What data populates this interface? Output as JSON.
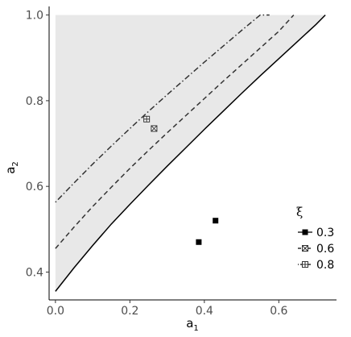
{
  "chart_data": {
    "type": "line",
    "xlabel": "a",
    "xlabel_sub": "1",
    "ylabel": "a",
    "ylabel_sub": "2",
    "xlim": [
      -0.017,
      0.755
    ],
    "ylim": [
      0.335,
      1.02
    ],
    "xticks": [
      0.0,
      0.2,
      0.4,
      0.6
    ],
    "xtick_labels": [
      "0.0",
      "0.2",
      "0.4",
      "0.6"
    ],
    "yticks": [
      0.4,
      0.6,
      0.8,
      1.0
    ],
    "ytick_labels": [
      "0.4",
      "0.6",
      "0.8",
      "1.0"
    ],
    "grid": false,
    "shaded_region": {
      "fill": "#e8e8e8",
      "x_range": [
        0.0,
        0.72
      ],
      "y_top": 1.0,
      "lower_boundary": "solid-curve"
    },
    "legend": {
      "title": "ξ",
      "position": "right",
      "entries": [
        {
          "label": "0.3",
          "marker": "filled-square",
          "line": "solid"
        },
        {
          "label": "0.6",
          "marker": "crossed-square",
          "line": "dashed"
        },
        {
          "label": "0.8",
          "marker": "plus-square",
          "line": "dotdash"
        }
      ]
    },
    "series": [
      {
        "name": "0.3",
        "linetype": "solid",
        "color": "#000000",
        "x": [
          0.0,
          0.05,
          0.1,
          0.15,
          0.2,
          0.25,
          0.3,
          0.35,
          0.4,
          0.45,
          0.5,
          0.55,
          0.6,
          0.65,
          0.7,
          0.725
        ],
        "y": [
          0.355,
          0.41,
          0.462,
          0.512,
          0.558,
          0.603,
          0.647,
          0.69,
          0.733,
          0.775,
          0.817,
          0.858,
          0.898,
          0.938,
          0.978,
          1.0
        ],
        "points": [
          [
            0.385,
            0.47
          ],
          [
            0.43,
            0.52
          ]
        ],
        "marker": "filled-square"
      },
      {
        "name": "0.6",
        "linetype": "dashed",
        "color": "#333333",
        "x": [
          0.0,
          0.05,
          0.1,
          0.15,
          0.2,
          0.25,
          0.3,
          0.35,
          0.4,
          0.45,
          0.5,
          0.55,
          0.6,
          0.64
        ],
        "y": [
          0.455,
          0.505,
          0.553,
          0.598,
          0.642,
          0.684,
          0.725,
          0.765,
          0.805,
          0.845,
          0.884,
          0.923,
          0.962,
          1.0
        ],
        "points": [
          [
            0.265,
            0.735
          ]
        ],
        "marker": "crossed-square"
      },
      {
        "name": "0.8",
        "linetype": "dotdash",
        "color": "#333333",
        "x": [
          0.0,
          0.05,
          0.1,
          0.15,
          0.2,
          0.25,
          0.3,
          0.35,
          0.4,
          0.45,
          0.5,
          0.55,
          0.575
        ],
        "y": [
          0.563,
          0.608,
          0.652,
          0.694,
          0.735,
          0.775,
          0.814,
          0.852,
          0.89,
          0.927,
          0.964,
          1.0,
          1.0
        ],
        "points": [
          [
            0.245,
            0.757
          ]
        ],
        "marker": "plus-square"
      }
    ]
  }
}
